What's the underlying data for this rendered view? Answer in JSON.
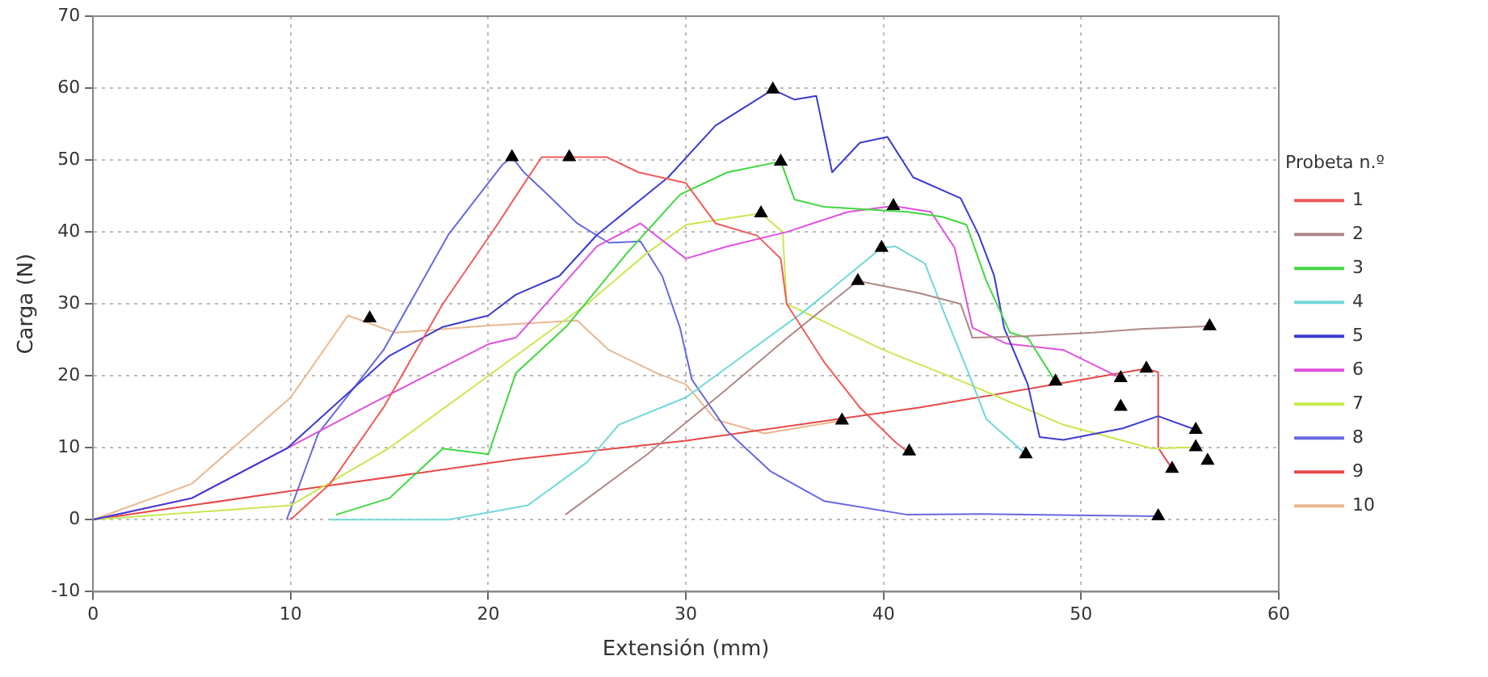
{
  "chart_data": {
    "type": "line",
    "xlabel": "Extensión (mm)",
    "ylabel": "Carga (N)",
    "legend_title": "Probeta n.º",
    "legend": "right",
    "grid": true,
    "line_style": "solid",
    "marker": "none",
    "xlim": [
      0,
      60
    ],
    "xticks": [
      0,
      10,
      20,
      30,
      40,
      50,
      60
    ],
    "ylim": [
      -10,
      70
    ],
    "yticks": [
      -10,
      0,
      10,
      20,
      30,
      40,
      50,
      60,
      70
    ],
    "series": [
      {
        "name": "1",
        "color": "#f05a5a",
        "x": [
          10,
          12,
          14.7,
          17.7,
          20.5,
          21.4,
          22.7,
          26,
          27.6,
          30,
          31.5,
          33.6,
          34.8,
          35.1,
          37,
          38.8,
          40.6,
          41.2
        ],
        "values": [
          0,
          5,
          15.6,
          30,
          41.2,
          45,
          50.4,
          50.4,
          48.3,
          46.8,
          41.2,
          39.5,
          36.3,
          30,
          21.9,
          15.6,
          10.8,
          9.5
        ]
      },
      {
        "name": "2",
        "color": "#b08888",
        "x": [
          23.9,
          28,
          32,
          35,
          38.7,
          41.8,
          43.9,
          44.5,
          47,
          50.6,
          53,
          56.5
        ],
        "values": [
          0.7,
          9,
          18,
          25,
          33.2,
          31.5,
          30,
          25.3,
          25.5,
          26,
          26.5,
          26.9
        ]
      },
      {
        "name": "3",
        "color": "#40d840",
        "x": [
          12.3,
          15,
          17.7,
          20,
          21.4,
          24,
          27,
          29.7,
          32.1,
          34.8,
          35.5,
          37,
          41.2,
          43,
          44.2,
          45.2,
          46.4,
          47.3,
          48.7
        ],
        "values": [
          0.7,
          3,
          9.9,
          9.1,
          20.4,
          27,
          37,
          45.2,
          48.3,
          49.8,
          44.5,
          43.5,
          42.8,
          42.1,
          41,
          33.2,
          26,
          25.3,
          19.2
        ]
      },
      {
        "name": "4",
        "color": "#70d8d8",
        "x": [
          12,
          18,
          22,
          25,
          26.6,
          30,
          33,
          36,
          39.9,
          40.6,
          42.1,
          43,
          44.3,
          45.2,
          47.2
        ],
        "values": [
          0,
          0,
          2,
          8,
          13.2,
          17,
          23,
          29,
          37.8,
          38,
          35.6,
          29.2,
          20.4,
          14,
          9.1
        ]
      },
      {
        "name": "5",
        "color": "#3c3cd0",
        "x": [
          0,
          5,
          9.8,
          15,
          17.7,
          20,
          21.4,
          23.6,
          25.5,
          29.1,
          31.5,
          34.4,
          35.5,
          36.6,
          37.4,
          38.8,
          40.2,
          41.5,
          43.9,
          44.8,
          45.6,
          46.1,
          47.3,
          47.9,
          49.1,
          52.1,
          53.9,
          55.8
        ],
        "values": [
          0,
          3,
          9.9,
          22.8,
          26.8,
          28.4,
          31.3,
          33.9,
          39.6,
          47.6,
          54.8,
          59.8,
          58.4,
          58.9,
          48.3,
          52.4,
          53.2,
          47.6,
          44.7,
          39.7,
          33.9,
          26.7,
          18.8,
          11.5,
          11.1,
          12.7,
          14.4,
          12.5
        ]
      },
      {
        "name": "6",
        "color": "#e050e0",
        "x": [
          0,
          5,
          9.8,
          14,
          17.7,
          20,
          21.4,
          25.5,
          27.7,
          30,
          32.1,
          35.1,
          38.2,
          40.5,
          42.4,
          43.6,
          44.5,
          46.2,
          49.1,
          52
        ],
        "values": [
          0,
          3,
          9.9,
          16,
          21.2,
          24.4,
          25.3,
          38,
          41.2,
          36.3,
          38,
          40,
          42.8,
          43.6,
          42.8,
          37.8,
          26.7,
          24.5,
          23.6,
          19.7
        ]
      },
      {
        "name": "7",
        "color": "#c8e850",
        "x": [
          0,
          10,
          15,
          20,
          25,
          28,
          30,
          33.8,
          34.9,
          35.1,
          40,
          44,
          49.1,
          53.6,
          55.8
        ],
        "values": [
          0,
          2,
          10,
          20,
          30,
          37,
          41,
          42.6,
          40,
          30,
          23.6,
          19.2,
          13.2,
          9.9,
          10.1
        ]
      },
      {
        "name": "8",
        "color": "#6868e0",
        "x": [
          9.8,
          11.4,
          14.7,
          18,
          20.7,
          21.2,
          21.8,
          23,
          24.5,
          26.1,
          27.7,
          28.8,
          29.7,
          30.3,
          32.1,
          34.3,
          37,
          41.2,
          45,
          53.9
        ],
        "values": [
          0,
          12,
          23.6,
          39.7,
          49.3,
          50.4,
          48.3,
          45.2,
          41.2,
          38.5,
          38.7,
          33.9,
          26.7,
          19.5,
          12.3,
          6.7,
          2.6,
          0.7,
          0.8,
          0.5
        ]
      },
      {
        "name": "9",
        "color": "#e84848",
        "x": [
          0,
          10,
          21.4,
          30,
          41.8,
          48,
          53.3,
          53.9,
          53.9,
          54.6
        ],
        "values": [
          0,
          4,
          8.4,
          11,
          15.6,
          18.5,
          21,
          20.5,
          10,
          7.1
        ]
      },
      {
        "name": "10",
        "color": "#e8b890",
        "x": [
          0,
          5,
          10,
          12.9,
          15.3,
          20,
          24.5,
          26.1,
          28.5,
          30,
          31.5,
          34,
          37.9
        ],
        "values": [
          0,
          5,
          17,
          28.4,
          26,
          27,
          27.7,
          23.6,
          20.4,
          18.8,
          13.9,
          12,
          13.8
        ]
      },
      {
        "type": "scatter",
        "color": "#000000",
        "marker": "triangle",
        "x": [
          14,
          21.2,
          24.1,
          34.4,
          34.8,
          33.8,
          40.5,
          39.9,
          38.7,
          37.9,
          41.3,
          47.2,
          48.7,
          52,
          52,
          53.3,
          56.5,
          55.8,
          55.8,
          56.4,
          54.6,
          53.9
        ],
        "values": [
          28,
          50.4,
          50.4,
          59.8,
          49.8,
          42.6,
          43.6,
          37.8,
          33.2,
          13.8,
          9.5,
          9.1,
          19.2,
          19.7,
          15.7,
          21,
          26.9,
          12.5,
          10.1,
          8.2,
          7.1,
          0.5
        ]
      }
    ]
  }
}
